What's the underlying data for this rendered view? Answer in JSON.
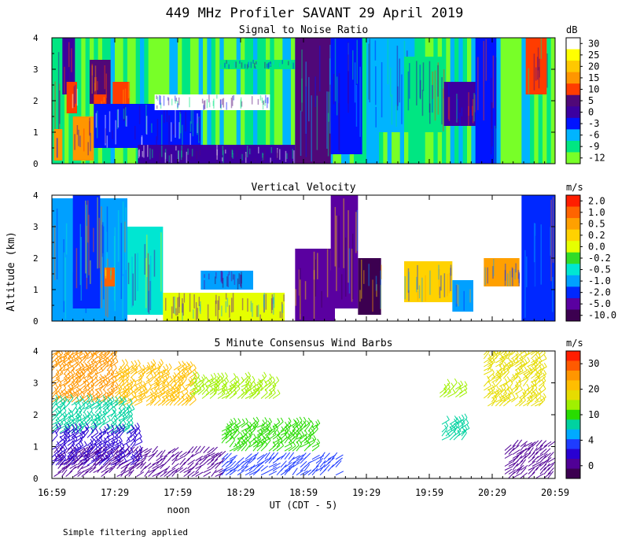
{
  "figure": {
    "title": "449 MHz Profiler SAVANT 29 April 2019",
    "ylabel": "Altitude (km)",
    "xlabel": "UT (CDT - 5)",
    "noon_label": "noon",
    "footnote": "Simple filtering applied",
    "x_ticks": [
      "16:59",
      "17:29",
      "17:59",
      "18:29",
      "18:59",
      "19:29",
      "19:59",
      "20:29",
      "20:59"
    ]
  },
  "chart_data": [
    {
      "type": "heatmap",
      "title": "Signal to Noise Ratio",
      "unit": "dB",
      "xlim": [
        "16:59",
        "20:59"
      ],
      "ylim": [
        0,
        4
      ],
      "y_ticks": [
        "0",
        "1",
        "2",
        "3",
        "4"
      ],
      "colorbar": {
        "labels": [
          "30",
          "25",
          "20",
          "15",
          "10",
          "5",
          "0",
          "-3",
          "-6",
          "-9",
          "-12"
        ],
        "colors": [
          "#ffffff",
          "#ffff00",
          "#ffc800",
          "#ff9600",
          "#ff3c00",
          "#500878",
          "#3c00a0",
          "#0014ff",
          "#00b4ff",
          "#00e682",
          "#78ff28"
        ]
      },
      "regions": [
        {
          "x0": "16:59",
          "x1": "17:04",
          "y0": 0,
          "y1": 4,
          "level": "-9"
        },
        {
          "x0": "17:04",
          "x1": "17:10",
          "y0": 2.2,
          "y1": 4,
          "level": "0"
        },
        {
          "x0": "17:17",
          "x1": "17:27",
          "y0": 1.9,
          "y1": 3.3,
          "level": "5"
        },
        {
          "x0": "17:19",
          "x1": "17:25",
          "y0": 1.4,
          "y1": 2.2,
          "level": "10"
        },
        {
          "x0": "17:28",
          "x1": "17:36",
          "y0": 1.7,
          "y1": 2.6,
          "level": "10"
        },
        {
          "x0": "17:00",
          "x1": "17:04",
          "y0": 0.1,
          "y1": 1.1,
          "level": "15"
        },
        {
          "x0": "17:09",
          "x1": "17:19",
          "y0": 0.1,
          "y1": 1.5,
          "level": "15"
        },
        {
          "x0": "17:06",
          "x1": "17:11",
          "y0": 1.6,
          "y1": 2.6,
          "level": "10"
        },
        {
          "x0": "17:19",
          "x1": "18:10",
          "y0": 0.5,
          "y1": 1.9,
          "level": "-3"
        },
        {
          "x0": "17:40",
          "x1": "18:55",
          "y0": 0,
          "y1": 0.6,
          "level": "0"
        },
        {
          "x0": "17:48",
          "x1": "18:43",
          "y0": 1.7,
          "y1": 2.2,
          "level": "30"
        },
        {
          "x0": "18:19",
          "x1": "18:55",
          "y0": 3.0,
          "y1": 3.3,
          "level": "-9"
        },
        {
          "x0": "18:55",
          "x1": "19:12",
          "y0": 0,
          "y1": 4,
          "level": "5"
        },
        {
          "x0": "19:12",
          "x1": "19:27",
          "y0": 0.3,
          "y1": 4,
          "level": "-3"
        },
        {
          "x0": "19:29",
          "x1": "19:52",
          "y0": 1.0,
          "y1": 4,
          "level": "-6"
        },
        {
          "x0": "19:47",
          "x1": "20:06",
          "y0": 1.0,
          "y1": 3.4,
          "level": "-9"
        },
        {
          "x0": "20:06",
          "x1": "20:23",
          "y0": 1.2,
          "y1": 2.6,
          "level": "0"
        },
        {
          "x0": "20:21",
          "x1": "20:31",
          "y0": 0,
          "y1": 4,
          "level": "-3"
        },
        {
          "x0": "20:45",
          "x1": "20:55",
          "y0": 2.2,
          "y1": 4,
          "level": "10"
        }
      ]
    },
    {
      "type": "heatmap",
      "title": "Vertical Velocity",
      "unit": "m/s",
      "xlim": [
        "16:59",
        "20:59"
      ],
      "ylim": [
        0,
        4
      ],
      "y_ticks": [
        "0",
        "1",
        "2",
        "3",
        "4"
      ],
      "colorbar": {
        "labels": [
          "2.0",
          "1.0",
          "0.5",
          "0.2",
          "0.0",
          "-0.2",
          "-0.5",
          "-1.0",
          "-2.0",
          "-5.0",
          "-10.0"
        ],
        "colors": [
          "#ff1e00",
          "#ff6400",
          "#ffa000",
          "#ffd200",
          "#e6ff00",
          "#32dc28",
          "#00e6d2",
          "#00a0ff",
          "#0028ff",
          "#5a00a0",
          "#3c0050"
        ]
      },
      "regions": [
        {
          "x0": "16:59",
          "x1": "17:35",
          "y0": 0,
          "y1": 3.9,
          "level": "-1.0"
        },
        {
          "x0": "17:09",
          "x1": "17:22",
          "y0": 0.4,
          "y1": 4,
          "level": "-2.0"
        },
        {
          "x0": "17:24",
          "x1": "17:29",
          "y0": 1.1,
          "y1": 1.7,
          "level": "1.0"
        },
        {
          "x0": "17:35",
          "x1": "17:52",
          "y0": 0.2,
          "y1": 3.0,
          "level": "-0.5"
        },
        {
          "x0": "17:52",
          "x1": "18:50",
          "y0": 0,
          "y1": 0.9,
          "level": "0.0"
        },
        {
          "x0": "18:10",
          "x1": "18:35",
          "y0": 1.0,
          "y1": 1.6,
          "level": "-1.0"
        },
        {
          "x0": "18:55",
          "x1": "19:14",
          "y0": 0,
          "y1": 2.3,
          "level": "-5.0"
        },
        {
          "x0": "19:12",
          "x1": "19:25",
          "y0": 0.4,
          "y1": 4,
          "level": "-5.0"
        },
        {
          "x0": "19:25",
          "x1": "19:36",
          "y0": 0.2,
          "y1": 2.0,
          "level": "-10.0"
        },
        {
          "x0": "19:47",
          "x1": "20:10",
          "y0": 0.6,
          "y1": 1.9,
          "level": "0.2"
        },
        {
          "x0": "20:10",
          "x1": "20:20",
          "y0": 0.3,
          "y1": 1.3,
          "level": "-1.0"
        },
        {
          "x0": "20:25",
          "x1": "20:42",
          "y0": 1.1,
          "y1": 2.0,
          "level": "0.5"
        },
        {
          "x0": "20:43",
          "x1": "20:59",
          "y0": 0,
          "y1": 4,
          "level": "-2.0"
        }
      ]
    },
    {
      "type": "scatter",
      "title": "5 Minute Consensus Wind Barbs",
      "unit": "m/s",
      "xlim": [
        "16:59",
        "20:59"
      ],
      "ylim": [
        0,
        4
      ],
      "y_ticks": [
        "0",
        "1",
        "2",
        "3",
        "4"
      ],
      "colorbar": {
        "labels": [
          "30",
          "20",
          "10",
          "4",
          "0"
        ],
        "colors": [
          "#ff1e00",
          "#ff5a00",
          "#ff9600",
          "#ffbe00",
          "#e6dc00",
          "#a0f000",
          "#28dc00",
          "#00d2a0",
          "#00aaff",
          "#1e3cff",
          "#2800d2",
          "#500096",
          "#3c0050"
        ]
      },
      "barb_clusters": [
        {
          "x0": "16:59",
          "x1": "17:29",
          "y0": 2.3,
          "y1": 4.0,
          "level": "25"
        },
        {
          "x0": "17:29",
          "x1": "18:05",
          "y0": 2.2,
          "y1": 3.4,
          "level": "20"
        },
        {
          "x0": "16:59",
          "x1": "17:35",
          "y0": 1.4,
          "y1": 2.3,
          "level": "12"
        },
        {
          "x0": "16:59",
          "x1": "17:40",
          "y0": 0.3,
          "y1": 1.4,
          "level": "6"
        },
        {
          "x0": "17:00",
          "x1": "18:20",
          "y0": 0.0,
          "y1": 0.8,
          "level": "3"
        },
        {
          "x0": "18:05",
          "x1": "18:45",
          "y0": 2.5,
          "y1": 3.0,
          "level": "18"
        },
        {
          "x0": "18:20",
          "x1": "19:05",
          "y0": 0.8,
          "y1": 1.6,
          "level": "10"
        },
        {
          "x0": "18:20",
          "x1": "19:15",
          "y0": 0.0,
          "y1": 0.6,
          "level": "4"
        },
        {
          "x0": "20:04",
          "x1": "20:14",
          "y0": 2.5,
          "y1": 2.8,
          "level": "17"
        },
        {
          "x0": "20:05",
          "x1": "20:15",
          "y0": 1.2,
          "y1": 1.7,
          "level": "12"
        },
        {
          "x0": "20:25",
          "x1": "20:52",
          "y0": 2.2,
          "y1": 4.0,
          "level": "19"
        },
        {
          "x0": "20:35",
          "x1": "20:56",
          "y0": 0.0,
          "y1": 1.0,
          "level": "2"
        }
      ]
    }
  ]
}
